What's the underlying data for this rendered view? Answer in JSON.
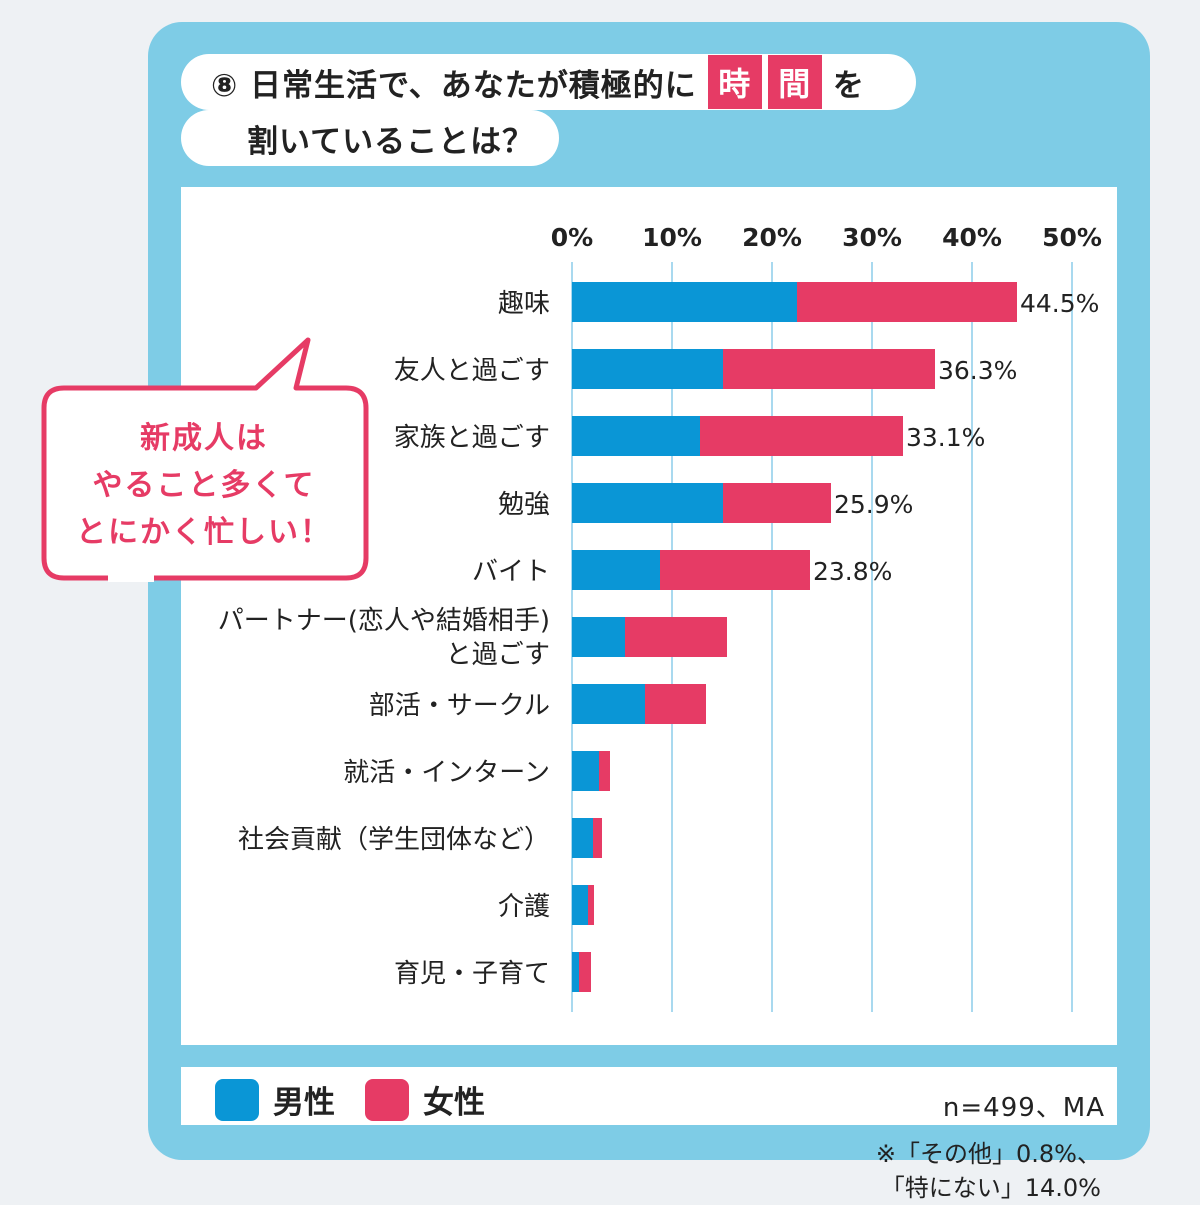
{
  "header": {
    "title_line1_pre": "⑧ 日常生活で、あなたが積極的に",
    "highlight_chars": [
      "時",
      "間"
    ],
    "title_line1_post": "を",
    "title_line2": "割いていることは？"
  },
  "callout": {
    "lines": [
      "新成人は",
      "やること多くて",
      "とにかく忙しい！"
    ]
  },
  "chart_data": {
    "type": "bar",
    "orientation": "horizontal",
    "stacked": true,
    "x_ticks": [
      "0%",
      "10%",
      "20%",
      "30%",
      "40%",
      "50%"
    ],
    "xlim": [
      0,
      50
    ],
    "grid": true,
    "categories": [
      [
        "趣味"
      ],
      [
        "友人と過ごす"
      ],
      [
        "家族と過ごす"
      ],
      [
        "勉強"
      ],
      [
        "バイト"
      ],
      [
        "パートナー(恋人や結婚相手)",
        "と過ごす"
      ],
      [
        "部活・サークル"
      ],
      [
        "就活・インターン"
      ],
      [
        "社会貢献（学生団体など）"
      ],
      [
        "介護"
      ],
      [
        "育児・子育て"
      ]
    ],
    "series": [
      {
        "name": "男性",
        "color": "#0a96d6",
        "values": [
          22.5,
          15.1,
          12.8,
          15.1,
          8.8,
          5.3,
          7.3,
          2.7,
          2.1,
          1.6,
          0.7
        ]
      },
      {
        "name": "女性",
        "color": "#e63b65",
        "values": [
          22.0,
          21.2,
          20.3,
          10.8,
          15.0,
          10.2,
          6.1,
          1.1,
          0.9,
          0.6,
          1.2
        ]
      }
    ],
    "total_labels": [
      "44.5%",
      "36.3%",
      "33.1%",
      "25.9%",
      "23.8%",
      "",
      "",
      "",
      "",
      "",
      ""
    ]
  },
  "notes": {
    "other_line1": "※「その他」0.8%、",
    "other_line2": "「特にない」14.0%",
    "sample": "n=499、MA"
  },
  "legend": [
    {
      "label": "男性",
      "color": "#0a96d6"
    },
    {
      "label": "女性",
      "color": "#e63b65"
    }
  ]
}
